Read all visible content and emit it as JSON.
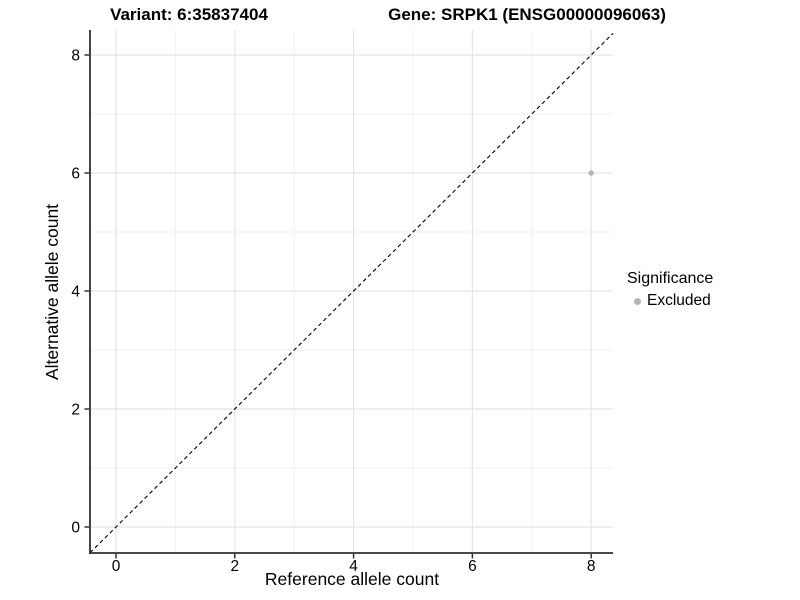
{
  "header": {
    "title_variant": "Variant: 6:35837404",
    "title_gene": "Gene: SRPK1 (ENSG00000096063)"
  },
  "chart_data": {
    "type": "scatter",
    "title_variant": "Variant: 6:35837404",
    "title_gene": "Gene: SRPK1 (ENSG00000096063)",
    "xlabel": "Reference allele count",
    "ylabel": "Alternative allele count",
    "xlim": [
      -0.42,
      8.42
    ],
    "ylim": [
      -0.42,
      8.42
    ],
    "x_ticks": [
      0,
      2,
      4,
      6,
      8
    ],
    "y_ticks": [
      0,
      2,
      4,
      6,
      8
    ],
    "x_minor_ticks": [
      1,
      3,
      5,
      7
    ],
    "y_minor_ticks": [
      1,
      3,
      5,
      7
    ],
    "grid": true,
    "points": [
      {
        "x": 8,
        "y": 6,
        "series": "Excluded"
      }
    ],
    "identity_line": {
      "slope": 1,
      "intercept": 0,
      "style": "dashed"
    },
    "legend": {
      "title": "Significance",
      "position": "right",
      "items": [
        {
          "label": "Excluded",
          "color": "#b5b5b5"
        }
      ]
    },
    "colors": {
      "point_excluded": "#b5b5b5",
      "grid_major": "#e4e4e4",
      "grid_minor": "#f0f0f0",
      "axis_line": "#2f2f2f",
      "tick_mark": "#333333",
      "dashed_line": "#000000",
      "background": "#ffffff"
    }
  }
}
